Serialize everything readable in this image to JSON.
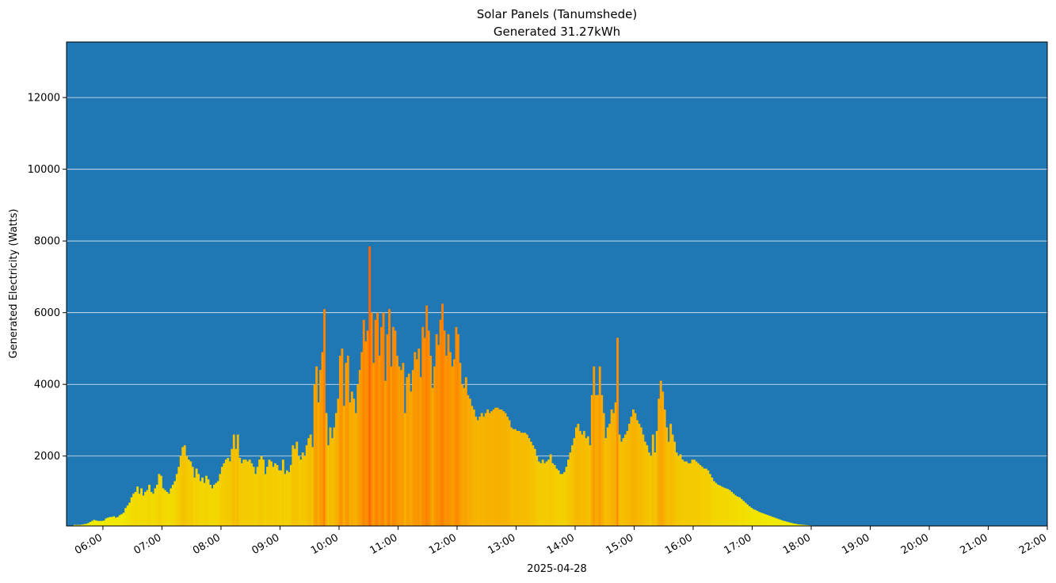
{
  "chart_data": {
    "type": "bar",
    "title": "Solar Panels (Tanumshede)",
    "subtitle": "Generated 31.27kWh",
    "xlabel": "2025-04-28",
    "ylabel": "Generated Electricity (Watts)",
    "ylim": [
      50,
      13550
    ],
    "xlim": [
      "05:23",
      "22:00"
    ],
    "grid": "horizontal",
    "colors": {
      "background": "#1f77b4",
      "gridline": "#e8eef5",
      "bar_low": "#f0f000",
      "bar_high": "#ff6600"
    },
    "yticks": [
      "2000",
      "4000",
      "6000",
      "8000",
      "10000",
      "12000"
    ],
    "xticks": [
      "06:00",
      "07:00",
      "08:00",
      "09:00",
      "10:00",
      "11:00",
      "12:00",
      "13:00",
      "14:00",
      "15:00",
      "16:00",
      "17:00",
      "18:00",
      "19:00",
      "20:00",
      "21:00",
      "22:00"
    ],
    "interval_minutes": 2,
    "x_start": "05:30",
    "values": [
      80,
      80,
      80,
      80,
      90,
      100,
      110,
      130,
      160,
      190,
      220,
      200,
      190,
      190,
      190,
      200,
      260,
      280,
      300,
      300,
      320,
      280,
      300,
      350,
      380,
      420,
      550,
      620,
      700,
      850,
      950,
      1000,
      1150,
      950,
      1100,
      900,
      1000,
      1050,
      1200,
      1000,
      950,
      1100,
      1200,
      1500,
      1450,
      1100,
      1050,
      1000,
      950,
      1100,
      1200,
      1300,
      1500,
      1700,
      2000,
      2250,
      2300,
      2000,
      1900,
      1850,
      1700,
      1400,
      1650,
      1500,
      1300,
      1400,
      1250,
      1450,
      1350,
      1200,
      1100,
      1200,
      1250,
      1300,
      1500,
      1700,
      1800,
      1900,
      1950,
      1850,
      2200,
      2600,
      2200,
      2600,
      1950,
      1800,
      1900,
      1900,
      1850,
      1900,
      1800,
      1700,
      1500,
      1700,
      1900,
      2000,
      1900,
      1500,
      1700,
      1900,
      1850,
      1700,
      1800,
      1750,
      1600,
      1600,
      1900,
      1500,
      1600,
      1550,
      1750,
      2300,
      2200,
      2400,
      2000,
      1900,
      2100,
      2000,
      2300,
      2500,
      2600,
      2250,
      4000,
      4500,
      3500,
      4400,
      4900,
      6100,
      3200,
      2300,
      2800,
      2500,
      2800,
      3200,
      3600,
      4800,
      5000,
      3400,
      4600,
      4800,
      3500,
      3800,
      3600,
      3200,
      4000,
      4400,
      4900,
      5800,
      5200,
      5500,
      7850,
      6000,
      4600,
      5800,
      6000,
      4800,
      5600,
      6000,
      4100,
      5400,
      6100,
      4500,
      5600,
      5500,
      4800,
      4500,
      4400,
      4600,
      3200,
      4200,
      4300,
      3800,
      4400,
      4900,
      4700,
      5000,
      4200,
      5600,
      5300,
      6200,
      5500,
      4800,
      3900,
      4500,
      5400,
      5100,
      5800,
      6250,
      5500,
      4800,
      5400,
      4900,
      4500,
      4700,
      5600,
      5400,
      4600,
      4000,
      3900,
      4200,
      3700,
      3600,
      3400,
      3300,
      3100,
      3000,
      3100,
      3200,
      3100,
      3200,
      3300,
      3200,
      3250,
      3300,
      3350,
      3350,
      3300,
      3300,
      3250,
      3200,
      3100,
      3000,
      2800,
      2750,
      2750,
      2700,
      2700,
      2650,
      2650,
      2650,
      2600,
      2500,
      2400,
      2300,
      2200,
      2000,
      1850,
      1800,
      1900,
      1800,
      1850,
      1900,
      2050,
      1800,
      1750,
      1650,
      1600,
      1500,
      1500,
      1550,
      1700,
      1900,
      2100,
      2300,
      2500,
      2800,
      2900,
      2700,
      2600,
      2700,
      2500,
      2550,
      2300,
      3700,
      4500,
      3700,
      3700,
      4500,
      3700,
      3200,
      2500,
      2800,
      2900,
      3300,
      3200,
      3500,
      5300,
      2600,
      2400,
      2500,
      2600,
      2700,
      2900,
      3100,
      3300,
      3200,
      3000,
      2900,
      2800,
      2600,
      2400,
      2300,
      2100,
      2000,
      2600,
      2100,
      2700,
      3600,
      4100,
      3800,
      3300,
      2800,
      2400,
      2900,
      2600,
      2400,
      2100,
      2000,
      2050,
      1900,
      1850,
      1850,
      1800,
      1800,
      1900,
      1900,
      1850,
      1800,
      1750,
      1700,
      1650,
      1650,
      1600,
      1500,
      1400,
      1300,
      1250,
      1200,
      1180,
      1150,
      1120,
      1100,
      1080,
      1050,
      1000,
      950,
      900,
      870,
      850,
      800,
      750,
      700,
      650,
      600,
      560,
      520,
      500,
      470,
      440,
      420,
      400,
      380,
      360,
      340,
      320,
      300,
      280,
      260,
      240,
      220,
      200,
      185,
      170,
      155,
      140,
      125,
      115,
      105,
      95,
      90,
      85,
      80,
      75,
      70,
      65,
      62,
      60,
      58,
      56,
      55,
      54,
      53,
      52,
      52,
      51,
      51,
      50,
      50
    ]
  }
}
